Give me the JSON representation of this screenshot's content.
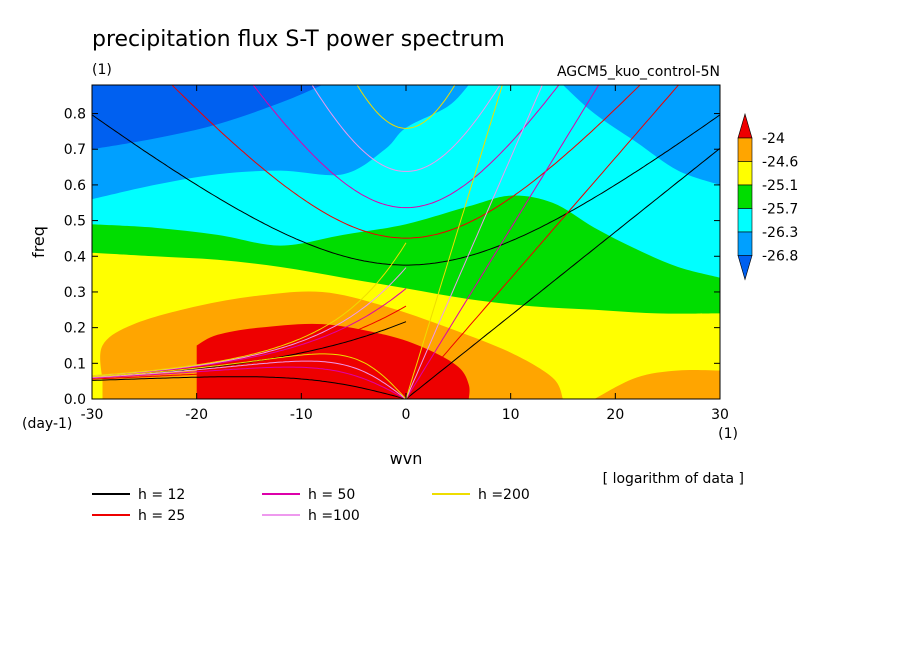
{
  "chart_data": {
    "type": "heatmap",
    "title": "precipitation flux S-T power spectrum",
    "subtitle_left": "(1)",
    "subtitle_right": "AGCM5_kuo_control-5N",
    "xlabel": "wvn",
    "ylabel": "freq",
    "x_unit": "(1)",
    "y_unit": "(day-1)",
    "xlim": [
      -30,
      30
    ],
    "ylim": [
      0,
      0.88
    ],
    "xticks": [
      -30,
      -20,
      -10,
      0,
      10,
      20,
      30
    ],
    "yticks": [
      0.0,
      0.1,
      0.2,
      0.3,
      0.4,
      0.5,
      0.6,
      0.7,
      0.8
    ],
    "note": "[ logarithm of data ]",
    "colorbar": {
      "levels": [
        -24,
        -24.6,
        -25.1,
        -25.7,
        -26.3,
        -26.8
      ],
      "colors": [
        "#ee0000",
        "#ffa500",
        "#ffff00",
        "#00dd00",
        "#00ffff",
        "#00a0ff",
        "#0060f0"
      ]
    },
    "contour_fields": [
      {
        "level": -26.8,
        "points": [
          [
            -30,
            0.7
          ],
          [
            -24,
            0.73
          ],
          [
            -18,
            0.77
          ],
          [
            -12,
            0.83
          ],
          [
            -8,
            0.88
          ]
        ]
      },
      {
        "level": -26.3,
        "points": [
          [
            -30,
            0.56
          ],
          [
            -24,
            0.6
          ],
          [
            -18,
            0.63
          ],
          [
            -12,
            0.64
          ],
          [
            -6,
            0.63
          ],
          [
            -2,
            0.7
          ],
          [
            0,
            0.76
          ],
          [
            4,
            0.82
          ],
          [
            6,
            0.88
          ]
        ]
      },
      {
        "level": -26.3,
        "points": [
          [
            15,
            0.88
          ],
          [
            18,
            0.8
          ],
          [
            22,
            0.72
          ],
          [
            26,
            0.64
          ],
          [
            30,
            0.6
          ]
        ]
      },
      {
        "level": -25.7,
        "points": [
          [
            -30,
            0.49
          ],
          [
            -24,
            0.48
          ],
          [
            -18,
            0.46
          ],
          [
            -12,
            0.43
          ],
          [
            -6,
            0.46
          ],
          [
            0,
            0.49
          ],
          [
            6,
            0.54
          ],
          [
            10,
            0.57
          ],
          [
            14,
            0.55
          ],
          [
            18,
            0.48
          ],
          [
            22,
            0.42
          ],
          [
            26,
            0.37
          ],
          [
            30,
            0.34
          ]
        ]
      },
      {
        "level": -25.1,
        "points": [
          [
            -30,
            0.41
          ],
          [
            -24,
            0.4
          ],
          [
            -18,
            0.39
          ],
          [
            -12,
            0.37
          ],
          [
            -6,
            0.34
          ],
          [
            0,
            0.31
          ],
          [
            6,
            0.28
          ],
          [
            12,
            0.26
          ],
          [
            18,
            0.25
          ],
          [
            24,
            0.24
          ],
          [
            30,
            0.24
          ]
        ]
      },
      {
        "level": -24.6,
        "points": [
          [
            -29,
            0.05
          ],
          [
            -29,
            0.15
          ],
          [
            -26,
            0.21
          ],
          [
            -20,
            0.26
          ],
          [
            -14,
            0.29
          ],
          [
            -8,
            0.3
          ],
          [
            -2,
            0.26
          ],
          [
            4,
            0.2
          ],
          [
            10,
            0.13
          ],
          [
            14,
            0.06
          ],
          [
            15,
            0.0
          ]
        ]
      },
      {
        "level": -24.6,
        "points": [
          [
            18,
            0.0
          ],
          [
            22,
            0.06
          ],
          [
            26,
            0.08
          ],
          [
            30,
            0.08
          ]
        ]
      },
      {
        "level": -24.0,
        "points": [
          [
            -20,
            0.15
          ],
          [
            -18,
            0.18
          ],
          [
            -14,
            0.2
          ],
          [
            -8,
            0.21
          ],
          [
            -2,
            0.18
          ],
          [
            2,
            0.14
          ],
          [
            5,
            0.09
          ],
          [
            6,
            0.04
          ],
          [
            6,
            0.0
          ]
        ]
      }
    ],
    "dispersion_legend": [
      {
        "label": "h = 12",
        "color": "#000000"
      },
      {
        "label": "h = 25",
        "color": "#ee0000"
      },
      {
        "label": "h = 50",
        "color": "#dd00aa"
      },
      {
        "label": "h =100",
        "color": "#ee99ee"
      },
      {
        "label": "h =200",
        "color": "#eedd00"
      }
    ],
    "equivalent_depths": [
      12,
      25,
      50,
      100,
      200
    ]
  }
}
